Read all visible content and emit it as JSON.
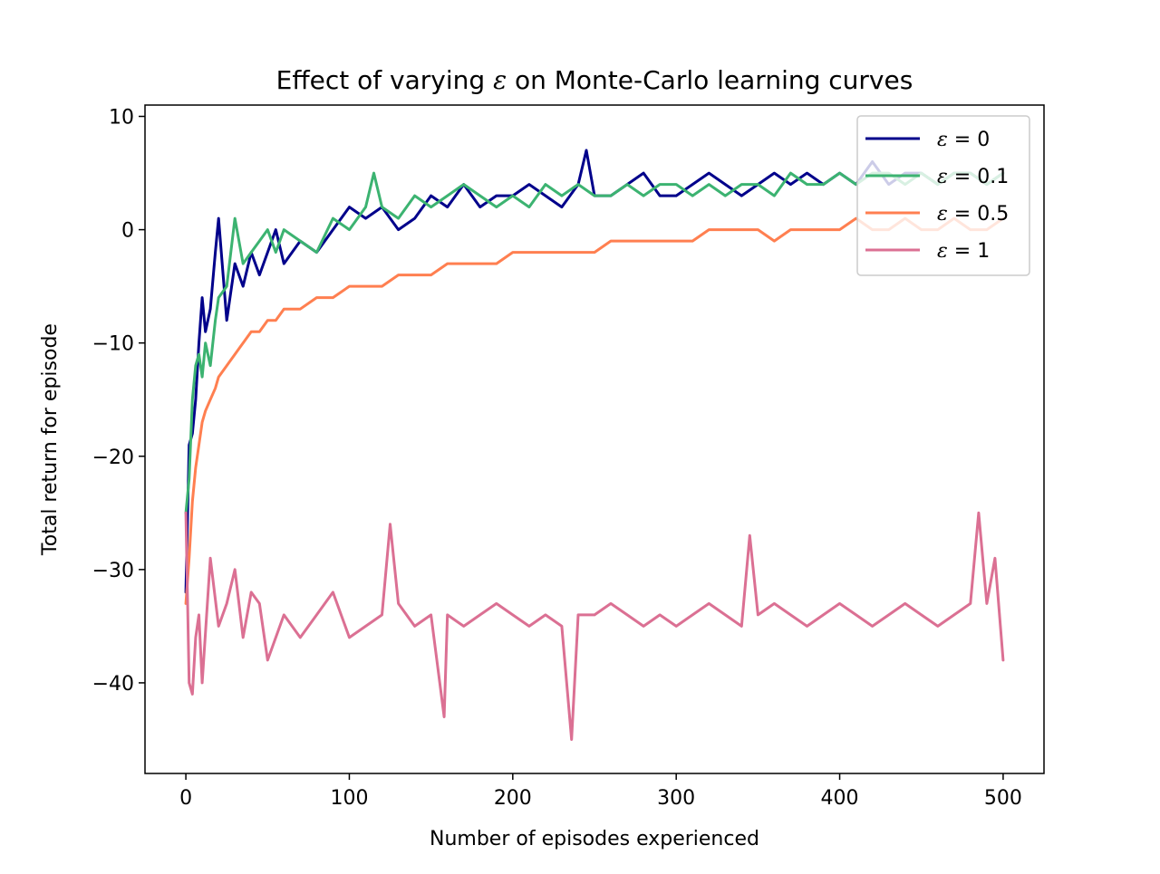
{
  "chart_data": {
    "type": "line",
    "title_pre": "Effect of varying ",
    "title_symbol": "ε",
    "title_post": " on Monte-Carlo learning curves",
    "xlabel": "Number of episodes experienced",
    "ylabel": "Total return for episode",
    "xlim": [
      -25,
      525
    ],
    "ylim": [
      -48,
      11
    ],
    "xticks": [
      0,
      100,
      200,
      300,
      400,
      500
    ],
    "yticks": [
      10,
      0,
      -10,
      -20,
      -30,
      -40
    ],
    "ytick_labels": [
      "10",
      "0",
      "−10",
      "−20",
      "−30",
      "−40"
    ],
    "legend_position": "top-right",
    "series": [
      {
        "symbol": "ε",
        "legend": "= 0",
        "color": "#00008b",
        "x": [
          0,
          2,
          4,
          6,
          8,
          10,
          12,
          15,
          18,
          20,
          25,
          30,
          35,
          40,
          45,
          50,
          55,
          60,
          70,
          80,
          90,
          100,
          110,
          120,
          130,
          140,
          150,
          160,
          170,
          180,
          190,
          200,
          210,
          220,
          230,
          240,
          245,
          250,
          260,
          270,
          280,
          290,
          300,
          310,
          320,
          330,
          340,
          350,
          360,
          370,
          380,
          390,
          400,
          410,
          420,
          430,
          440,
          450,
          460,
          470,
          480,
          490,
          500
        ],
        "y": [
          -32,
          -19,
          -18,
          -15,
          -10,
          -6,
          -9,
          -7,
          -2,
          1,
          -8,
          -3,
          -5,
          -2,
          -4,
          -2,
          0,
          -3,
          -1,
          -2,
          0,
          2,
          1,
          2,
          0,
          1,
          3,
          2,
          4,
          2,
          3,
          3,
          4,
          3,
          2,
          4,
          7,
          3,
          3,
          4,
          5,
          3,
          3,
          4,
          5,
          4,
          3,
          4,
          5,
          4,
          5,
          4,
          5,
          4,
          6,
          4,
          5,
          5,
          4,
          5,
          5,
          4,
          5
        ]
      },
      {
        "symbol": "ε",
        "legend": "= 0.1",
        "color": "#3cb371",
        "x": [
          0,
          2,
          4,
          6,
          8,
          10,
          12,
          15,
          18,
          20,
          25,
          30,
          35,
          40,
          45,
          50,
          55,
          60,
          70,
          80,
          90,
          100,
          110,
          115,
          120,
          130,
          140,
          150,
          160,
          170,
          180,
          190,
          200,
          210,
          220,
          230,
          240,
          250,
          260,
          270,
          280,
          290,
          300,
          310,
          320,
          330,
          340,
          350,
          360,
          370,
          380,
          390,
          400,
          410,
          420,
          430,
          440,
          450,
          460,
          470,
          480,
          490,
          500
        ],
        "y": [
          -25,
          -22,
          -15,
          -12,
          -11,
          -13,
          -10,
          -12,
          -8,
          -6,
          -5,
          1,
          -3,
          -2,
          -1,
          0,
          -2,
          0,
          -1,
          -2,
          1,
          0,
          2,
          5,
          2,
          1,
          3,
          2,
          3,
          4,
          3,
          2,
          3,
          2,
          4,
          3,
          4,
          3,
          3,
          4,
          3,
          4,
          4,
          3,
          4,
          3,
          4,
          4,
          3,
          5,
          4,
          4,
          5,
          4,
          5,
          5,
          4,
          5,
          4,
          5,
          5,
          4,
          5
        ]
      },
      {
        "symbol": "ε",
        "legend": "= 0.5",
        "color": "#ff7f50",
        "x": [
          0,
          2,
          4,
          6,
          8,
          10,
          12,
          15,
          18,
          20,
          25,
          30,
          35,
          40,
          45,
          50,
          55,
          60,
          70,
          80,
          90,
          100,
          110,
          120,
          130,
          140,
          150,
          160,
          170,
          180,
          190,
          200,
          210,
          220,
          230,
          240,
          250,
          260,
          270,
          280,
          290,
          300,
          310,
          320,
          330,
          340,
          350,
          360,
          370,
          380,
          390,
          400,
          410,
          420,
          430,
          440,
          450,
          460,
          470,
          480,
          490,
          500
        ],
        "y": [
          -33,
          -29,
          -24,
          -21,
          -19,
          -17,
          -16,
          -15,
          -14,
          -13,
          -12,
          -11,
          -10,
          -9,
          -9,
          -8,
          -8,
          -7,
          -7,
          -6,
          -6,
          -5,
          -5,
          -5,
          -4,
          -4,
          -4,
          -3,
          -3,
          -3,
          -3,
          -2,
          -2,
          -2,
          -2,
          -2,
          -2,
          -1,
          -1,
          -1,
          -1,
          -1,
          -1,
          0,
          0,
          0,
          0,
          -1,
          0,
          0,
          0,
          0,
          1,
          0,
          0,
          1,
          0,
          0,
          1,
          0,
          0,
          1
        ]
      },
      {
        "symbol": "ε",
        "legend": "= 1",
        "color": "#db7093",
        "x": [
          0,
          2,
          4,
          6,
          8,
          10,
          15,
          20,
          25,
          30,
          35,
          40,
          45,
          50,
          60,
          70,
          80,
          90,
          100,
          110,
          120,
          125,
          130,
          140,
          150,
          158,
          160,
          170,
          180,
          190,
          200,
          210,
          220,
          230,
          236,
          240,
          250,
          260,
          270,
          280,
          290,
          300,
          310,
          320,
          330,
          340,
          345,
          350,
          360,
          370,
          380,
          390,
          400,
          410,
          420,
          430,
          440,
          450,
          460,
          470,
          480,
          485,
          490,
          495,
          500
        ],
        "y": [
          -25,
          -40,
          -41,
          -36,
          -34,
          -40,
          -29,
          -35,
          -33,
          -30,
          -36,
          -32,
          -33,
          -38,
          -34,
          -36,
          -34,
          -32,
          -36,
          -35,
          -34,
          -26,
          -33,
          -35,
          -34,
          -43,
          -34,
          -35,
          -34,
          -33,
          -34,
          -35,
          -34,
          -35,
          -45,
          -34,
          -34,
          -33,
          -34,
          -35,
          -34,
          -35,
          -34,
          -33,
          -34,
          -35,
          -27,
          -34,
          -33,
          -34,
          -35,
          -34,
          -33,
          -34,
          -35,
          -34,
          -33,
          -34,
          -35,
          -34,
          -33,
          -25,
          -33,
          -29,
          -38
        ]
      }
    ]
  }
}
